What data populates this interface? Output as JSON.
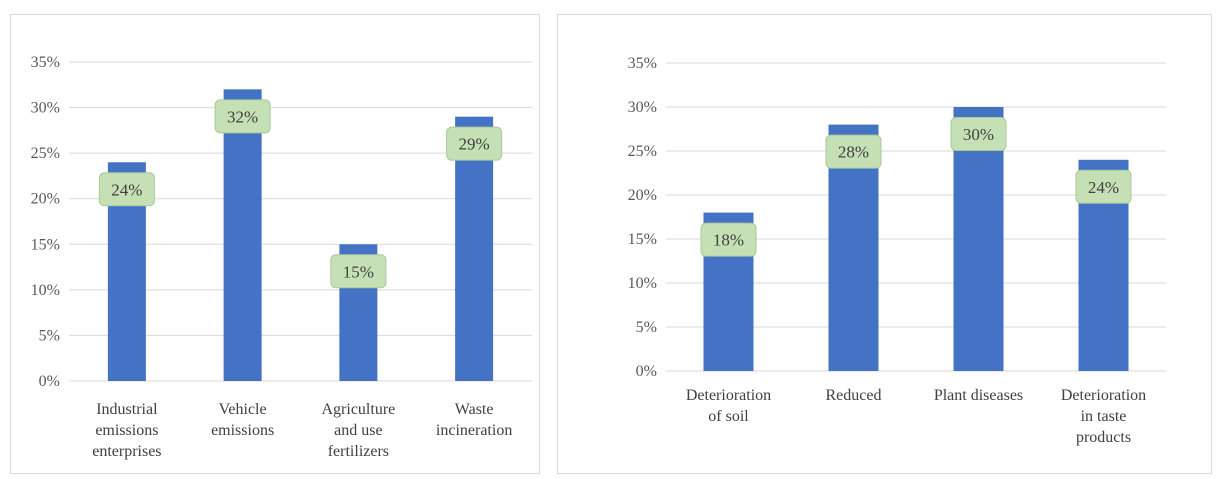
{
  "chart_data": [
    {
      "type": "bar",
      "categories": [
        [
          "Industrial",
          "emissions",
          "enterprises"
        ],
        [
          "Vehicle",
          "emissions"
        ],
        [
          "Agriculture",
          "and use",
          "fertilizers"
        ],
        [
          "Waste",
          "incineration"
        ]
      ],
      "values": [
        24,
        32,
        15,
        29
      ],
      "data_labels": [
        "24%",
        "32%",
        "15%",
        "29%"
      ],
      "ylim": [
        0,
        35
      ],
      "yticks": [
        "0%",
        "5%",
        "10%",
        "15%",
        "20%",
        "25%",
        "30%",
        "35%"
      ],
      "title": "",
      "xlabel": "",
      "ylabel": "",
      "grid": true,
      "legend": "none"
    },
    {
      "type": "bar",
      "categories": [
        [
          "Deterioration",
          "of soil"
        ],
        [
          "Reduced"
        ],
        [
          "Plant diseases"
        ],
        [
          "Deterioration",
          "in taste",
          "products"
        ]
      ],
      "values": [
        18,
        28,
        30,
        24
      ],
      "data_labels": [
        "18%",
        "28%",
        "30%",
        "24%"
      ],
      "ylim": [
        0,
        35
      ],
      "yticks": [
        "0%",
        "5%",
        "10%",
        "15%",
        "20%",
        "25%",
        "30%",
        "35%"
      ],
      "title": "",
      "xlabel": "",
      "ylabel": "",
      "grid": true,
      "legend": "none"
    }
  ],
  "colors": {
    "bar": "#4472c4",
    "gridline": "#d9d9d9",
    "label_box_fill": "#c5e0b4",
    "label_box_stroke": "#a9c99a"
  }
}
